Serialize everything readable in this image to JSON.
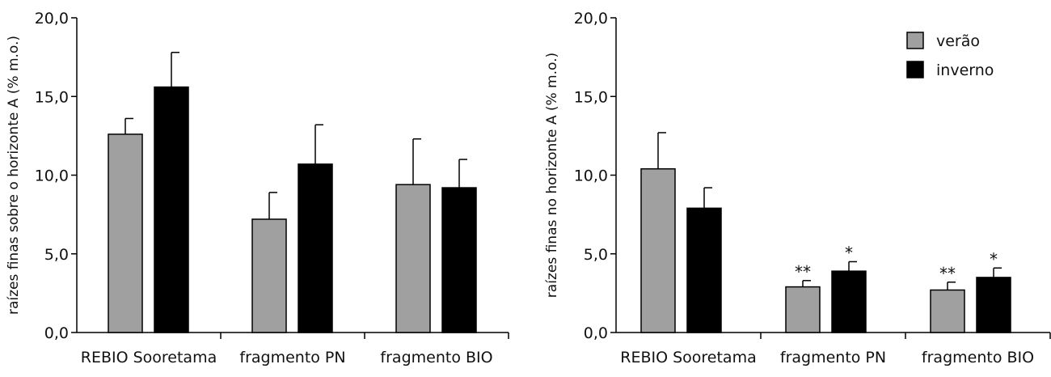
{
  "colors": {
    "verao": "#a0a0a0",
    "inverno": "#000000",
    "axis": "#000000"
  },
  "chart_data": [
    {
      "type": "bar",
      "title": "",
      "xlabel": "",
      "ylabel": "raízes finas sobre o horizonte A (% m.o.)",
      "ylim": [
        0,
        20
      ],
      "yticks": [
        "0,0",
        "5,0",
        "10,0",
        "15,0",
        "20,0"
      ],
      "categories": [
        "REBIO Sooretama",
        "fragmento PN",
        "fragmento BIO"
      ],
      "legend": null,
      "series": [
        {
          "name": "verão",
          "values": [
            12.6,
            7.2,
            9.4
          ],
          "errors": [
            1.0,
            1.7,
            2.9
          ],
          "marks": [
            "",
            "",
            ""
          ]
        },
        {
          "name": "inverno",
          "values": [
            15.6,
            10.7,
            9.2
          ],
          "errors": [
            2.2,
            2.5,
            1.8
          ],
          "marks": [
            "",
            "",
            ""
          ]
        }
      ]
    },
    {
      "type": "bar",
      "title": "",
      "xlabel": "",
      "ylabel": "raízes finas no horizonte A (% m.o.)",
      "ylim": [
        0,
        20
      ],
      "yticks": [
        "0,0",
        "5,0",
        "10,0",
        "15,0",
        "20,0"
      ],
      "categories": [
        "REBIO Sooretama",
        "fragmento PN",
        "fragmento BIO"
      ],
      "legend": "top-right",
      "series": [
        {
          "name": "verão",
          "values": [
            10.4,
            2.9,
            2.7
          ],
          "errors": [
            2.3,
            0.4,
            0.5
          ],
          "marks": [
            "",
            "**",
            "**"
          ]
        },
        {
          "name": "inverno",
          "values": [
            7.9,
            3.9,
            3.5
          ],
          "errors": [
            1.3,
            0.6,
            0.6
          ],
          "marks": [
            "",
            "*",
            "*"
          ]
        }
      ]
    }
  ]
}
